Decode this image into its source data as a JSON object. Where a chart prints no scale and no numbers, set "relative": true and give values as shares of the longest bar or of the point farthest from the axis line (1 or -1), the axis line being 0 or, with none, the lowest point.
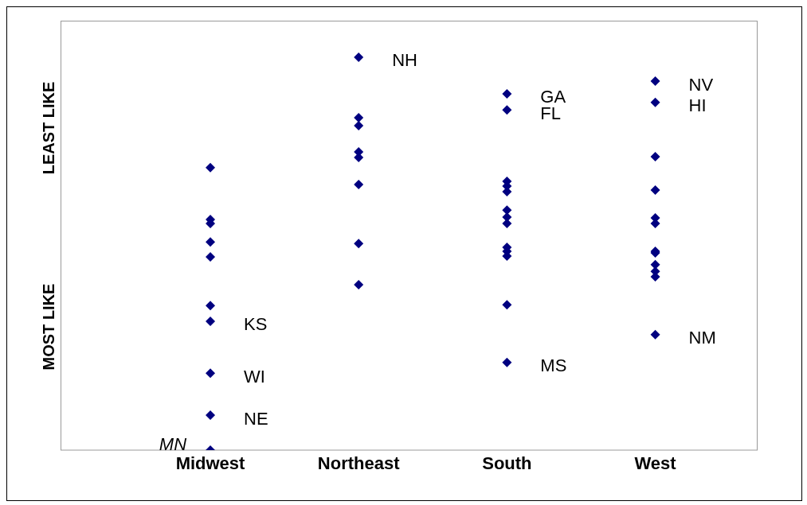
{
  "chart_data": {
    "type": "scatter",
    "relative": true,
    "marker": "diamond",
    "categories": [
      "Midwest",
      "Northeast",
      "South",
      "West"
    ],
    "series": [
      {
        "color": "#000080",
        "x": [
          "Midwest",
          "Midwest",
          "Midwest",
          "Midwest",
          "Midwest",
          "Midwest",
          "Midwest",
          "Midwest",
          "Midwest",
          "Midwest",
          "Northeast",
          "Northeast",
          "Northeast",
          "Northeast",
          "Northeast",
          "Northeast",
          "Northeast",
          "Northeast",
          "South",
          "South",
          "South",
          "South",
          "South",
          "South",
          "South",
          "South",
          "South",
          "South",
          "South",
          "South",
          "South",
          "West",
          "West",
          "West",
          "West",
          "West",
          "West",
          "West",
          "West",
          "West",
          "West",
          "West",
          "West"
        ],
        "values": [
          0.719,
          0.587,
          0.577,
          0.53,
          0.492,
          0.368,
          0.328,
          0.196,
          0.089,
          0,
          1,
          0.846,
          0.826,
          0.759,
          0.745,
          0.676,
          0.526,
          0.421,
          0.907,
          0.866,
          0.684,
          0.672,
          0.658,
          0.611,
          0.593,
          0.577,
          0.516,
          0.506,
          0.494,
          0.37,
          0.223,
          0.939,
          0.885,
          0.747,
          0.662,
          0.591,
          0.577,
          0.506,
          0.502,
          0.472,
          0.455,
          0.441,
          0.294
        ]
      }
    ],
    "annotations": [
      "MOST LIKE",
      "LEAST LIKE",
      {
        "text": "NH",
        "x": "Northeast",
        "y": 1
      },
      {
        "text": "GA",
        "x": "South",
        "y": 0.907
      },
      {
        "text": "FL",
        "x": "South",
        "y": 0.866
      },
      {
        "text": "MS",
        "x": "South",
        "y": 0.223
      },
      {
        "text": "NV",
        "x": "West",
        "y": 0.939
      },
      {
        "text": "HI",
        "x": "West",
        "y": 0.885
      },
      {
        "text": "NM",
        "x": "West",
        "y": 0.294
      },
      {
        "text": "KS",
        "x": "Midwest",
        "y": 0.328
      },
      {
        "text": "WI",
        "x": "Midwest",
        "y": 0.196
      },
      {
        "text": "NE",
        "x": "Midwest",
        "y": 0.089
      },
      {
        "text": "MN",
        "x": "Midwest",
        "y": 0
      }
    ]
  }
}
